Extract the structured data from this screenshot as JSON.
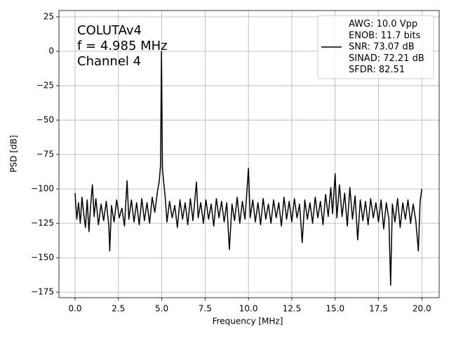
{
  "chart_data": {
    "type": "line",
    "annotations": [
      "COLUTAv4",
      "f = 4.985 MHz",
      "Channel 4"
    ],
    "xlabel": "Frequency [MHz]",
    "ylabel": "PSD [dB]",
    "xlim": [
      -0.93,
      21.0
    ],
    "ylim": [
      -179,
      29.6
    ],
    "xticks": [
      {
        "value": 0,
        "label": "0.0"
      },
      2.5,
      {
        "value": 5,
        "label": "5.0"
      },
      7.5,
      {
        "value": 10,
        "label": "10.0"
      },
      12.5,
      {
        "value": 15,
        "label": "15.0"
      },
      17.5,
      {
        "value": 20,
        "label": "20.0"
      }
    ],
    "yticks": [
      25,
      0,
      {
        "value": -25,
        "label": "−25"
      },
      {
        "value": -50,
        "label": "−50"
      },
      {
        "value": -75,
        "label": "−75"
      },
      {
        "value": -100,
        "label": "−100"
      },
      {
        "value": -125,
        "label": "−125"
      },
      {
        "value": -150,
        "label": "−150"
      },
      {
        "value": -175,
        "label": "−175"
      }
    ],
    "grid": true,
    "legend": "upper right",
    "x": [
      0.0,
      0.1,
      0.2,
      0.3,
      0.4,
      0.5,
      0.6,
      0.7,
      0.8,
      0.9,
      1.0,
      1.1,
      1.2,
      1.35,
      1.5,
      1.65,
      1.8,
      1.95,
      2.0,
      2.1,
      2.25,
      2.4,
      2.55,
      2.7,
      2.85,
      3.0,
      3.1,
      3.25,
      3.4,
      3.55,
      3.7,
      3.85,
      4.0,
      4.15,
      4.3,
      4.45,
      4.6,
      4.75,
      4.85,
      4.93,
      4.985,
      5.04,
      5.12,
      5.2,
      5.3,
      5.45,
      5.6,
      5.75,
      5.9,
      6.05,
      6.2,
      6.35,
      6.5,
      6.65,
      6.8,
      7.0,
      7.1,
      7.25,
      7.4,
      7.55,
      7.7,
      7.85,
      8.0,
      8.15,
      8.3,
      8.45,
      8.6,
      8.75,
      8.9,
      9.05,
      9.2,
      9.35,
      9.5,
      9.65,
      9.8,
      10.0,
      10.1,
      10.25,
      10.4,
      10.55,
      10.7,
      10.85,
      11.0,
      11.15,
      11.3,
      11.45,
      11.6,
      11.75,
      11.9,
      12.05,
      12.2,
      12.35,
      12.5,
      12.65,
      12.8,
      12.95,
      13.1,
      13.25,
      13.4,
      13.55,
      13.7,
      13.85,
      14.0,
      14.15,
      14.3,
      14.45,
      14.6,
      14.75,
      14.85,
      15.0,
      15.1,
      15.25,
      15.4,
      15.55,
      15.7,
      15.85,
      16.0,
      16.15,
      16.3,
      16.45,
      16.6,
      16.75,
      16.9,
      17.05,
      17.2,
      17.35,
      17.5,
      17.65,
      17.8,
      17.95,
      18.1,
      18.2,
      18.3,
      18.45,
      18.6,
      18.75,
      18.9,
      19.05,
      19.2,
      19.35,
      19.5,
      19.65,
      19.8,
      19.9,
      20.0
    ],
    "series": [
      {
        "name": "AWG: 10.0 Vpp\nENOB: 11.7 bits\nSNR: 73.07 dB\nSINAD: 72.21 dB\nSFDR: 82.51",
        "color": "#000000",
        "values": [
          -103,
          -122,
          -110,
          -125,
          -106,
          -118,
          -128,
          -108,
          -131,
          -112,
          -97,
          -120,
          -107,
          -126,
          -111,
          -123,
          -109,
          -127,
          -145,
          -112,
          -124,
          -108,
          -121,
          -114,
          -127,
          -94,
          -122,
          -108,
          -124,
          -110,
          -126,
          -107,
          -123,
          -110,
          -125,
          -106,
          -117,
          -102,
          -95,
          -83,
          0,
          -85,
          -96,
          -106,
          -124,
          -109,
          -121,
          -112,
          -128,
          -108,
          -122,
          -110,
          -126,
          -107,
          -123,
          -95,
          -121,
          -110,
          -125,
          -108,
          -122,
          -111,
          -127,
          -107,
          -121,
          -109,
          -124,
          -110,
          -144,
          -111,
          -123,
          -106,
          -125,
          -109,
          -122,
          -85,
          -121,
          -108,
          -124,
          -110,
          -126,
          -107,
          -122,
          -111,
          -125,
          -108,
          -121,
          -110,
          -127,
          -106,
          -122,
          -109,
          -124,
          -107,
          -121,
          -111,
          -139,
          -108,
          -122,
          -110,
          -125,
          -106,
          -121,
          -109,
          -126,
          -104,
          -120,
          -99,
          -118,
          -89,
          -121,
          -97,
          -120,
          -103,
          -127,
          -99,
          -122,
          -105,
          -137,
          -108,
          -123,
          -109,
          -126,
          -107,
          -121,
          -110,
          -124,
          -108,
          -129,
          -110,
          -122,
          -170,
          -111,
          -124,
          -107,
          -128,
          -110,
          -122,
          -108,
          -125,
          -111,
          -123,
          -145,
          -109,
          -100
        ]
      }
    ]
  }
}
